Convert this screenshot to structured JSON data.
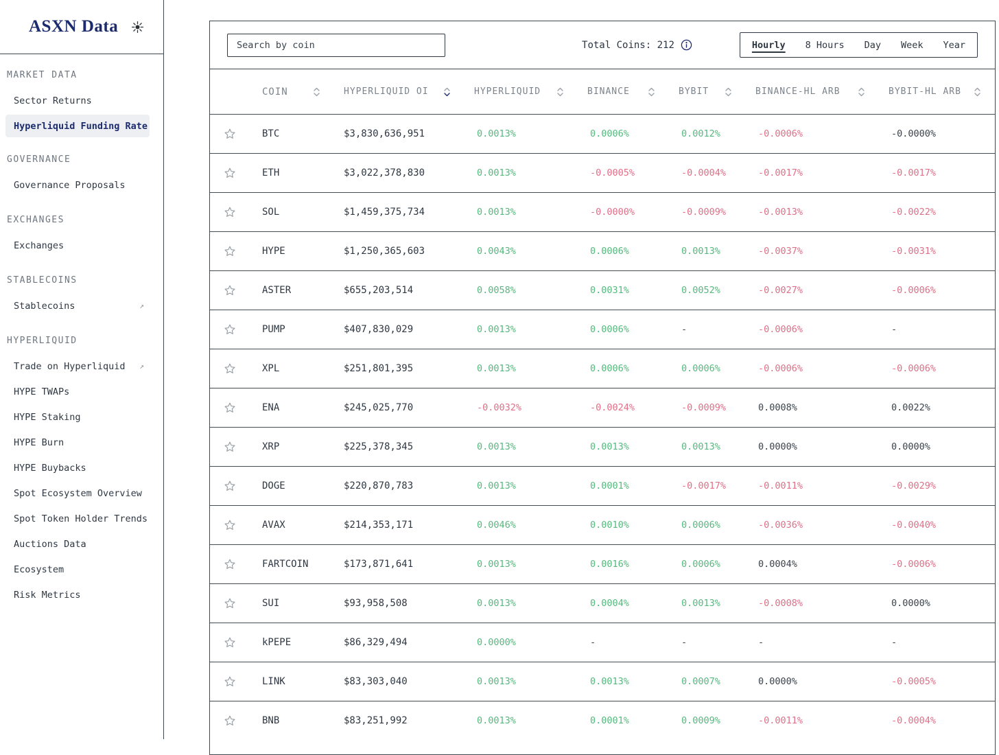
{
  "sidebar": {
    "logo": "ASXN Data",
    "theme_icon": "sun-icon",
    "sections": [
      {
        "label": "MARKET DATA",
        "items": [
          {
            "label": "Sector Returns"
          },
          {
            "label": "Hyperliquid Funding Rate",
            "active": true
          }
        ]
      },
      {
        "label": "GOVERNANCE",
        "items": [
          {
            "label": "Governance Proposals"
          }
        ]
      },
      {
        "label": "EXCHANGES",
        "items": [
          {
            "label": "Exchanges"
          }
        ]
      },
      {
        "label": "STABLECOINS",
        "items": [
          {
            "label": "Stablecoins",
            "external": true
          }
        ]
      },
      {
        "label": "HYPERLIQUID",
        "items": [
          {
            "label": "Trade on Hyperliquid",
            "external": true
          },
          {
            "label": "HYPE TWAPs"
          },
          {
            "label": "HYPE Staking"
          },
          {
            "label": "HYPE Burn"
          },
          {
            "label": "HYPE Buybacks"
          },
          {
            "label": "Spot Ecosystem Overview"
          },
          {
            "label": "Spot Token Holder Trends"
          },
          {
            "label": "Auctions Data"
          },
          {
            "label": "Ecosystem"
          },
          {
            "label": "Risk Metrics"
          }
        ]
      }
    ],
    "external_arrow_glyph": "↗"
  },
  "toolbar": {
    "search_placeholder": "Search by coin",
    "total_coins_label": "Total Coins: 212",
    "info_icon": "info-icon",
    "time_tabs": [
      "Hourly",
      "8 Hours",
      "Day",
      "Week",
      "Year"
    ],
    "active_tab": "Hourly"
  },
  "table": {
    "columns": [
      {
        "label": "COIN",
        "sort": "none"
      },
      {
        "label": "HYPERLIQUID OI",
        "sort": "desc"
      },
      {
        "label": "HYPERLIQUID",
        "sort": "none"
      },
      {
        "label": "BINANCE",
        "sort": "none"
      },
      {
        "label": "BYBIT",
        "sort": "none"
      },
      {
        "label": "BINANCE-HL ARB",
        "sort": "none"
      },
      {
        "label": "BYBIT-HL ARB",
        "sort": "none"
      }
    ],
    "favorite_icon": "star-icon",
    "rows": [
      {
        "coin": "BTC",
        "oi": "$3,830,636,951",
        "cells": [
          {
            "v": "0.0013%",
            "t": "pos"
          },
          {
            "v": "0.0006%",
            "t": "pos"
          },
          {
            "v": "0.0012%",
            "t": "pos"
          },
          {
            "v": "-0.0006%",
            "t": "neg"
          },
          {
            "v": "-0.0000%",
            "t": "neu"
          }
        ]
      },
      {
        "coin": "ETH",
        "oi": "$3,022,378,830",
        "cells": [
          {
            "v": "0.0013%",
            "t": "pos"
          },
          {
            "v": "-0.0005%",
            "t": "neg"
          },
          {
            "v": "-0.0004%",
            "t": "neg"
          },
          {
            "v": "-0.0017%",
            "t": "neg"
          },
          {
            "v": "-0.0017%",
            "t": "neg"
          }
        ]
      },
      {
        "coin": "SOL",
        "oi": "$1,459,375,734",
        "cells": [
          {
            "v": "0.0013%",
            "t": "pos"
          },
          {
            "v": "-0.0000%",
            "t": "neg"
          },
          {
            "v": "-0.0009%",
            "t": "neg"
          },
          {
            "v": "-0.0013%",
            "t": "neg"
          },
          {
            "v": "-0.0022%",
            "t": "neg"
          }
        ]
      },
      {
        "coin": "HYPE",
        "oi": "$1,250,365,603",
        "cells": [
          {
            "v": "0.0043%",
            "t": "pos"
          },
          {
            "v": "0.0006%",
            "t": "pos"
          },
          {
            "v": "0.0013%",
            "t": "pos"
          },
          {
            "v": "-0.0037%",
            "t": "neg"
          },
          {
            "v": "-0.0031%",
            "t": "neg"
          }
        ]
      },
      {
        "coin": "ASTER",
        "oi": "$655,203,514",
        "cells": [
          {
            "v": "0.0058%",
            "t": "pos"
          },
          {
            "v": "0.0031%",
            "t": "pos"
          },
          {
            "v": "0.0052%",
            "t": "pos"
          },
          {
            "v": "-0.0027%",
            "t": "neg"
          },
          {
            "v": "-0.0006%",
            "t": "neg"
          }
        ]
      },
      {
        "coin": "PUMP",
        "oi": "$407,830,029",
        "cells": [
          {
            "v": "0.0013%",
            "t": "pos"
          },
          {
            "v": "0.0006%",
            "t": "pos"
          },
          {
            "v": "-",
            "t": "neu"
          },
          {
            "v": "-0.0006%",
            "t": "neg"
          },
          {
            "v": "-",
            "t": "neu"
          }
        ]
      },
      {
        "coin": "XPL",
        "oi": "$251,801,395",
        "cells": [
          {
            "v": "0.0013%",
            "t": "pos"
          },
          {
            "v": "0.0006%",
            "t": "pos"
          },
          {
            "v": "0.0006%",
            "t": "pos"
          },
          {
            "v": "-0.0006%",
            "t": "neg"
          },
          {
            "v": "-0.0006%",
            "t": "neg"
          }
        ]
      },
      {
        "coin": "ENA",
        "oi": "$245,025,770",
        "cells": [
          {
            "v": "-0.0032%",
            "t": "neg"
          },
          {
            "v": "-0.0024%",
            "t": "neg"
          },
          {
            "v": "-0.0009%",
            "t": "neg"
          },
          {
            "v": "0.0008%",
            "t": "neu"
          },
          {
            "v": "0.0022%",
            "t": "neu"
          }
        ]
      },
      {
        "coin": "XRP",
        "oi": "$225,378,345",
        "cells": [
          {
            "v": "0.0013%",
            "t": "pos"
          },
          {
            "v": "0.0013%",
            "t": "pos"
          },
          {
            "v": "0.0013%",
            "t": "pos"
          },
          {
            "v": "0.0000%",
            "t": "neu"
          },
          {
            "v": "0.0000%",
            "t": "neu"
          }
        ]
      },
      {
        "coin": "DOGE",
        "oi": "$220,870,783",
        "cells": [
          {
            "v": "0.0013%",
            "t": "pos"
          },
          {
            "v": "0.0001%",
            "t": "pos"
          },
          {
            "v": "-0.0017%",
            "t": "neg"
          },
          {
            "v": "-0.0011%",
            "t": "neg"
          },
          {
            "v": "-0.0029%",
            "t": "neg"
          }
        ]
      },
      {
        "coin": "AVAX",
        "oi": "$214,353,171",
        "cells": [
          {
            "v": "0.0046%",
            "t": "pos"
          },
          {
            "v": "0.0010%",
            "t": "pos"
          },
          {
            "v": "0.0006%",
            "t": "pos"
          },
          {
            "v": "-0.0036%",
            "t": "neg"
          },
          {
            "v": "-0.0040%",
            "t": "neg"
          }
        ]
      },
      {
        "coin": "FARTCOIN",
        "oi": "$173,871,641",
        "cells": [
          {
            "v": "0.0013%",
            "t": "pos"
          },
          {
            "v": "0.0016%",
            "t": "pos"
          },
          {
            "v": "0.0006%",
            "t": "pos"
          },
          {
            "v": "0.0004%",
            "t": "neu"
          },
          {
            "v": "-0.0006%",
            "t": "neg"
          }
        ]
      },
      {
        "coin": "SUI",
        "oi": "$93,958,508",
        "cells": [
          {
            "v": "0.0013%",
            "t": "pos"
          },
          {
            "v": "0.0004%",
            "t": "pos"
          },
          {
            "v": "0.0013%",
            "t": "pos"
          },
          {
            "v": "-0.0008%",
            "t": "neg"
          },
          {
            "v": "0.0000%",
            "t": "neu"
          }
        ]
      },
      {
        "coin": "kPEPE",
        "oi": "$86,329,494",
        "cells": [
          {
            "v": "0.0000%",
            "t": "pos"
          },
          {
            "v": "-",
            "t": "neu"
          },
          {
            "v": "-",
            "t": "neu"
          },
          {
            "v": "-",
            "t": "neu"
          },
          {
            "v": "-",
            "t": "neu"
          }
        ]
      },
      {
        "coin": "LINK",
        "oi": "$83,303,040",
        "cells": [
          {
            "v": "0.0013%",
            "t": "pos"
          },
          {
            "v": "0.0013%",
            "t": "pos"
          },
          {
            "v": "0.0007%",
            "t": "pos"
          },
          {
            "v": "0.0000%",
            "t": "neu"
          },
          {
            "v": "-0.0005%",
            "t": "neg"
          }
        ]
      },
      {
        "coin": "BNB",
        "oi": "$83,251,992",
        "cells": [
          {
            "v": "0.0013%",
            "t": "pos"
          },
          {
            "v": "0.0001%",
            "t": "pos"
          },
          {
            "v": "0.0009%",
            "t": "pos"
          },
          {
            "v": "-0.0011%",
            "t": "neg"
          },
          {
            "v": "-0.0004%",
            "t": "neg"
          }
        ]
      }
    ]
  },
  "colors": {
    "positive": "#55b97d",
    "negative": "#e26e87",
    "neutral_value": "#3a434c",
    "accent_navy": "#1c2c6e",
    "border": "#3f474e",
    "muted_text": "#7b838c"
  }
}
